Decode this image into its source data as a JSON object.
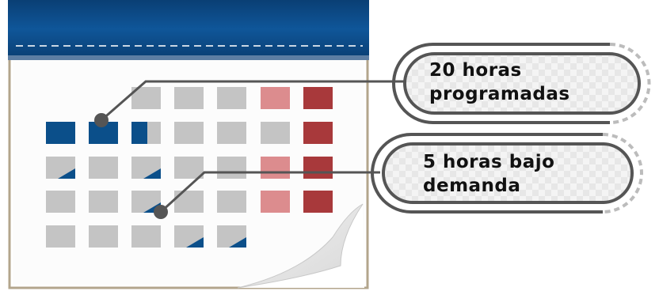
{
  "callouts": [
    {
      "line1": "20 horas",
      "line2": "programadas"
    },
    {
      "line1": "5 horas bajo",
      "line2": "demanda"
    }
  ],
  "colors": {
    "cover_blue": "#0d4f8f",
    "stitch": "#c9d6e3",
    "cell_gray": "#c4c4c4",
    "cell_blue": "#0b4f8a",
    "cell_pink": "#dc8c8e",
    "cell_red": "#a8393b",
    "paper": "#ffffff",
    "paper_border": "#a89b85",
    "callout_line": "#555555"
  },
  "calendar": {
    "rows": [
      [
        "empty",
        "empty",
        "gray",
        "gray",
        "gray",
        "pink",
        "red"
      ],
      [
        "blue",
        "blue",
        "half-blue",
        "gray",
        "gray",
        "gray",
        "red"
      ],
      [
        "corner",
        "gray",
        "corner",
        "gray",
        "gray",
        "pink",
        "red"
      ],
      [
        "gray",
        "gray",
        "gray-dot",
        "gray",
        "gray",
        "pink",
        "red"
      ],
      [
        "gray",
        "gray",
        "gray",
        "corner",
        "corner",
        "empty",
        "empty"
      ]
    ]
  }
}
